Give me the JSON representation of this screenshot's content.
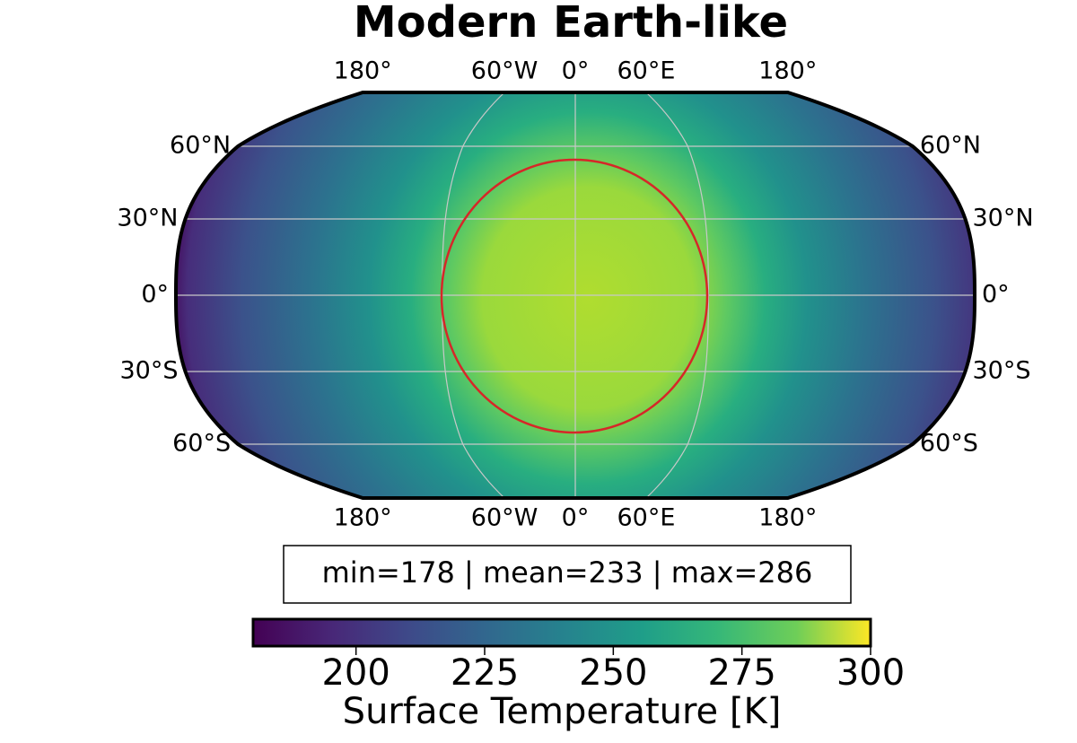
{
  "chart_data": {
    "type": "map",
    "title": "Modern Earth-like",
    "lon_ticks": [
      {
        "value": -180,
        "label": "180°"
      },
      {
        "value": -60,
        "label": "60°W"
      },
      {
        "value": 0,
        "label": "0°"
      },
      {
        "value": 60,
        "label": "60°E"
      },
      {
        "value": 180,
        "label": "180°"
      }
    ],
    "lat_ticks": [
      {
        "value": 60,
        "label": "60°N"
      },
      {
        "value": 30,
        "label": "30°N"
      },
      {
        "value": 0,
        "label": "0°"
      },
      {
        "value": -30,
        "label": "30°S"
      },
      {
        "value": -60,
        "label": "60°S"
      }
    ],
    "stats": "min=178 | mean=233 | max=286",
    "colorbar": {
      "lim": [
        180,
        300
      ],
      "ticks": [
        200,
        225,
        250,
        275,
        300
      ],
      "label": "Surface Temperature [K]"
    },
    "contour_color": "#d62728"
  }
}
